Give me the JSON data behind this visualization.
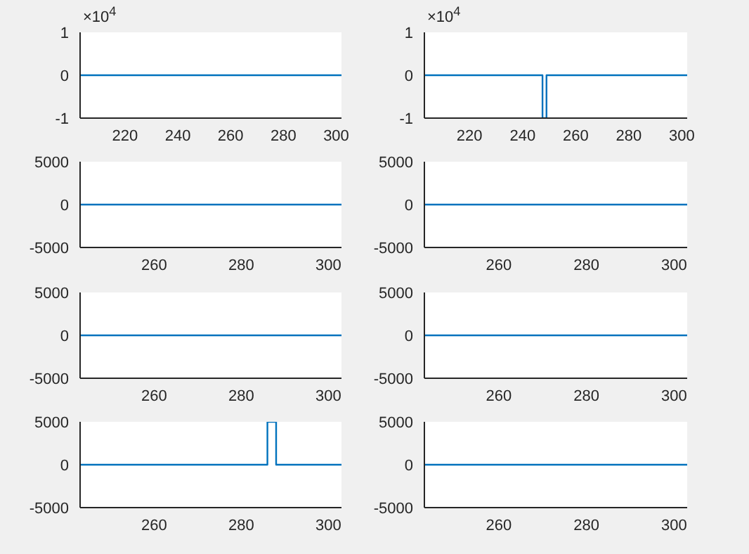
{
  "chart_data": [
    {
      "type": "line",
      "x": [
        203,
        302
      ],
      "values": [
        0,
        0
      ],
      "color": "#0072bd",
      "xlim": [
        203,
        302
      ],
      "xticks": [
        220,
        240,
        260,
        280,
        300
      ],
      "ylim": [
        -1,
        1
      ],
      "yticks": [
        -1,
        0,
        1
      ],
      "annotations": [
        "×10$^{4}$"
      ]
    },
    {
      "type": "line",
      "x": [
        203,
        247.5,
        247.5,
        249,
        249,
        302
      ],
      "values": [
        0,
        0,
        -1,
        -1,
        0,
        0
      ],
      "color": "#0072bd",
      "xlim": [
        203,
        302
      ],
      "xticks": [
        220,
        240,
        260,
        280,
        300
      ],
      "ylim": [
        -1,
        1
      ],
      "yticks": [
        -1,
        0,
        1
      ],
      "annotations": [
        "×10$^{4}$"
      ]
    },
    {
      "type": "line",
      "x": [
        243,
        303
      ],
      "values": [
        0,
        0
      ],
      "color": "#0072bd",
      "xlim": [
        243,
        303
      ],
      "xticks": [
        260,
        280,
        300
      ],
      "ylim": [
        -5000,
        5000
      ],
      "yticks": [
        -5000,
        0,
        5000
      ]
    },
    {
      "type": "line",
      "x": [
        243,
        303
      ],
      "values": [
        0,
        0
      ],
      "color": "#0072bd",
      "xlim": [
        243,
        303
      ],
      "xticks": [
        260,
        280,
        300
      ],
      "ylim": [
        -5000,
        5000
      ],
      "yticks": [
        -5000,
        0,
        5000
      ]
    },
    {
      "type": "line",
      "x": [
        243,
        303
      ],
      "values": [
        0,
        0
      ],
      "color": "#0072bd",
      "xlim": [
        243,
        303
      ],
      "xticks": [
        260,
        280,
        300
      ],
      "ylim": [
        -5000,
        5000
      ],
      "yticks": [
        -5000,
        0,
        5000
      ]
    },
    {
      "type": "line",
      "x": [
        243,
        303
      ],
      "values": [
        0,
        0
      ],
      "color": "#0072bd",
      "xlim": [
        243,
        303
      ],
      "xticks": [
        260,
        280,
        300
      ],
      "ylim": [
        -5000,
        5000
      ],
      "yticks": [
        -5000,
        0,
        5000
      ]
    },
    {
      "type": "line",
      "x": [
        243,
        286,
        286,
        288,
        288,
        303
      ],
      "values": [
        0,
        0,
        5000,
        5000,
        0,
        0
      ],
      "color": "#0072bd",
      "xlim": [
        243,
        303
      ],
      "xticks": [
        260,
        280,
        300
      ],
      "ylim": [
        -5000,
        5000
      ],
      "yticks": [
        -5000,
        0,
        5000
      ]
    },
    {
      "type": "line",
      "x": [
        243,
        303
      ],
      "values": [
        0,
        0
      ],
      "color": "#0072bd",
      "xlim": [
        243,
        303
      ],
      "xticks": [
        260,
        280,
        300
      ],
      "ylim": [
        -5000,
        5000
      ],
      "yticks": [
        -5000,
        0,
        5000
      ]
    }
  ]
}
